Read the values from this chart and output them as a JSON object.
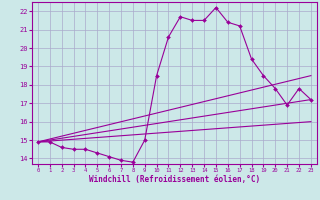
{
  "xlabel": "Windchill (Refroidissement éolien,°C)",
  "background_color": "#cce8e8",
  "grid_color": "#aaaacc",
  "line_color": "#990099",
  "xlim": [
    -0.5,
    23.5
  ],
  "ylim": [
    13.7,
    22.5
  ],
  "xticks": [
    0,
    1,
    2,
    3,
    4,
    5,
    6,
    7,
    8,
    9,
    10,
    11,
    12,
    13,
    14,
    15,
    16,
    17,
    18,
    19,
    20,
    21,
    22,
    23
  ],
  "yticks": [
    14,
    15,
    16,
    17,
    18,
    19,
    20,
    21,
    22
  ],
  "lines": [
    {
      "x": [
        0,
        1,
        2,
        3,
        4,
        5,
        6,
        7,
        8,
        9,
        10,
        11,
        12,
        13,
        14,
        15,
        16,
        17,
        18,
        19,
        20,
        21,
        22,
        23
      ],
      "y": [
        14.9,
        14.9,
        14.6,
        14.5,
        14.5,
        14.3,
        14.1,
        13.9,
        13.8,
        15.0,
        18.5,
        20.6,
        21.7,
        21.5,
        21.5,
        22.2,
        21.4,
        21.2,
        19.4,
        18.5,
        17.8,
        16.9,
        17.8,
        17.2
      ],
      "has_markers": true
    },
    {
      "x": [
        0,
        23
      ],
      "y": [
        14.9,
        18.5
      ],
      "has_markers": false
    },
    {
      "x": [
        0,
        23
      ],
      "y": [
        14.9,
        17.2
      ],
      "has_markers": false
    },
    {
      "x": [
        0,
        23
      ],
      "y": [
        14.9,
        16.0
      ],
      "has_markers": false
    }
  ]
}
